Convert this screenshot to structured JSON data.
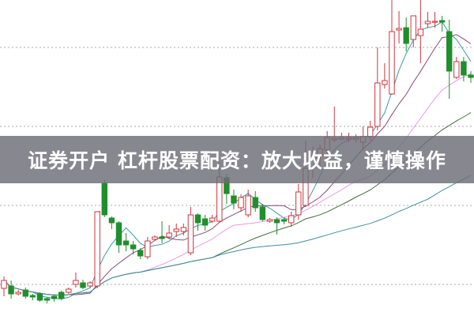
{
  "banner": {
    "title": "证券开户 杠杆股票配资：放大收益，谨慎操作"
  },
  "chart_data": {
    "type": "candlestick",
    "title": "",
    "xlabel": "",
    "ylabel": "",
    "ylim": [
      0,
      40
    ],
    "grid": {
      "horizontal": true,
      "style": "dotted",
      "levels": [
        4,
        14,
        24,
        34
      ]
    },
    "colors": {
      "up": "#d0353f",
      "down": "#1f8f2c",
      "grid": "#aaaaaa",
      "ma": [
        "#3a9aa0",
        "#8a4a7a",
        "#e79ae6",
        "#3f6f3a",
        "#3f8fa0"
      ]
    },
    "moving_averages": [
      5,
      10,
      20,
      30,
      60
    ],
    "candles_ohlc_order": "open, close, high, low",
    "candles": [
      [
        3.5,
        4.5,
        5.0,
        2.5
      ],
      [
        3.8,
        2.8,
        4.5,
        2.2
      ],
      [
        2.8,
        3.0,
        3.3,
        2.6
      ],
      [
        3.3,
        2.5,
        3.6,
        2.2
      ],
      [
        2.6,
        2.4,
        2.8,
        2.0
      ],
      [
        2.8,
        2.0,
        3.0,
        1.8
      ],
      [
        2.2,
        2.0,
        2.4,
        1.6
      ],
      [
        2.5,
        2.2,
        2.6,
        1.8
      ],
      [
        3.0,
        2.2,
        3.2,
        2.0
      ],
      [
        3.0,
        3.4,
        3.6,
        2.8
      ],
      [
        4.0,
        4.5,
        5.5,
        3.6
      ],
      [
        4.2,
        3.6,
        4.6,
        3.4
      ],
      [
        3.8,
        4.2,
        4.4,
        3.6
      ],
      [
        3.8,
        13.2,
        13.2,
        3.5
      ],
      [
        16.8,
        12.8,
        17.2,
        12.5
      ],
      [
        12.4,
        11.8,
        12.6,
        11.0
      ],
      [
        11.8,
        9.0,
        12.0,
        8.0
      ],
      [
        9.5,
        9.0,
        10.5,
        8.2
      ],
      [
        9.0,
        8.5,
        9.5,
        7.8
      ],
      [
        8.3,
        7.6,
        8.6,
        7.2
      ],
      [
        7.5,
        9.5,
        10.0,
        7.2
      ],
      [
        9.7,
        10.0,
        10.2,
        9.5
      ],
      [
        10.0,
        9.8,
        12.0,
        9.2
      ],
      [
        10.0,
        10.5,
        11.5,
        9.7
      ],
      [
        10.7,
        11.0,
        11.7,
        10.0
      ],
      [
        10.7,
        11.2,
        11.7,
        10.2
      ],
      [
        8.0,
        12.8,
        13.8,
        7.7
      ],
      [
        12.8,
        11.8,
        13.0,
        10.8
      ],
      [
        12.3,
        11.5,
        12.8,
        10.8
      ],
      [
        12.0,
        12.4,
        12.8,
        11.8
      ],
      [
        12.0,
        17.6,
        19.5,
        11.8
      ],
      [
        17.5,
        15.5,
        18.0,
        14.2
      ],
      [
        15.2,
        14.3,
        16.0,
        13.5
      ],
      [
        13.7,
        15.0,
        15.4,
        13.2
      ],
      [
        12.8,
        15.2,
        16.0,
        12.5
      ],
      [
        15.0,
        13.7,
        15.8,
        13.2
      ],
      [
        13.8,
        12.2,
        14.2,
        12.0
      ],
      [
        12.0,
        12.2,
        12.4,
        11.8
      ],
      [
        12.2,
        11.8,
        12.5,
        10.3
      ],
      [
        12.2,
        12.0,
        12.5,
        11.6
      ],
      [
        11.8,
        12.7,
        13.2,
        11.3
      ],
      [
        12.8,
        15.7,
        16.7,
        12.2
      ],
      [
        14.0,
        18.7,
        22.2,
        13.8
      ],
      [
        18.8,
        20.3,
        21.5,
        17.5
      ],
      [
        20.3,
        21.2,
        21.7,
        18.5
      ],
      [
        21.0,
        22.6,
        23.4,
        19.0
      ],
      [
        22.3,
        22.5,
        26.5,
        22.0
      ],
      [
        22.4,
        22.6,
        23.2,
        22.2
      ],
      [
        22.4,
        22.6,
        23.2,
        22.0
      ],
      [
        22.4,
        22.6,
        23.0,
        22.0
      ],
      [
        22.0,
        22.7,
        24.0,
        21.0
      ],
      [
        22.7,
        23.9,
        24.7,
        22.2
      ],
      [
        24.0,
        29.5,
        34.0,
        23.5
      ],
      [
        29.3,
        29.8,
        32.0,
        28.8
      ],
      [
        28.1,
        36.0,
        40.0,
        28.0
      ],
      [
        36.2,
        36.4,
        38.6,
        34.5
      ],
      [
        36.5,
        34.5,
        37.8,
        33.5
      ],
      [
        35.0,
        38.0,
        38.0,
        34.0
      ],
      [
        35.5,
        36.3,
        40.0,
        32.0
      ],
      [
        37.0,
        37.3,
        38.5,
        36.5
      ],
      [
        37.2,
        37.3,
        38.5,
        36.5
      ],
      [
        37.4,
        37.2,
        38.0,
        36.0
      ],
      [
        36.0,
        31.0,
        37.5,
        27.5
      ],
      [
        30.2,
        32.2,
        32.8,
        30.0
      ],
      [
        32.2,
        30.5,
        32.8,
        29.7
      ],
      [
        30.5,
        30.2,
        31.0,
        29.5
      ]
    ],
    "annotations": [
      {
        "type": "dashed-level",
        "value": 13.2,
        "color": "#d0353f"
      }
    ]
  }
}
